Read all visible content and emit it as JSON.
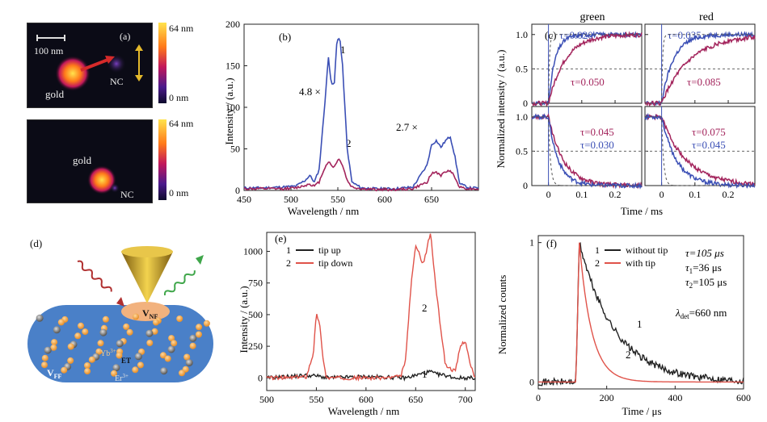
{
  "panels": {
    "a": {
      "tag": "(a)",
      "scale_bar": "100 nm",
      "top": {
        "label_gold": "gold",
        "label_nc": "NC"
      },
      "bottom": {
        "label_gold": "gold",
        "label_nc": "NC"
      },
      "colorbar_top": [
        "64 nm",
        "0 nm"
      ],
      "colorbar_bottom": [
        "64 nm",
        "0 nm"
      ],
      "colors": {
        "low": "#0d0a2c",
        "mid1": "#4b1a8c",
        "mid2": "#c2185b",
        "mid3": "#ff7a1a",
        "high": "#ffe34d"
      }
    },
    "b": {
      "tag": "(b)",
      "annotations": [
        "1",
        "2",
        "4.8 ×",
        "2.7 ×"
      ],
      "chart_data": {
        "type": "line",
        "xlabel": "Wavelength / nm",
        "ylabel": "Intensity / (a.u.)",
        "xlim": [
          450,
          700
        ],
        "ylim": [
          0,
          200
        ],
        "xticks": [
          450,
          500,
          550,
          600,
          650
        ],
        "yticks": [
          0,
          50,
          100,
          150,
          200
        ],
        "series": [
          {
            "name": "1",
            "color": "#3b4fb5",
            "x": [
              450,
              470,
              490,
              505,
              515,
              520,
              525,
              530,
              535,
              540,
              543,
              546,
              549,
              552,
              555,
              560,
              565,
              575,
              590,
              610,
              630,
              645,
              650,
              655,
              660,
              665,
              670,
              675,
              680,
              690,
              700
            ],
            "y": [
              3,
              3,
              4,
              5,
              12,
              18,
              10,
              25,
              90,
              160,
              130,
              125,
              180,
              185,
              150,
              50,
              10,
              3,
              2,
              2,
              4,
              30,
              55,
              60,
              52,
              60,
              65,
              40,
              8,
              3,
              3
            ]
          },
          {
            "name": "2",
            "color": "#a3245c",
            "x": [
              450,
              470,
              490,
              505,
              515,
              520,
              525,
              530,
              535,
              540,
              543,
              546,
              549,
              552,
              555,
              560,
              565,
              575,
              590,
              610,
              630,
              645,
              650,
              655,
              660,
              665,
              670,
              675,
              680,
              690,
              700
            ],
            "y": [
              2,
              2,
              2,
              3,
              6,
              8,
              5,
              10,
              25,
              35,
              30,
              28,
              35,
              38,
              30,
              12,
              4,
              2,
              1,
              1,
              2,
              10,
              20,
              22,
              18,
              22,
              25,
              15,
              4,
              2,
              2
            ]
          }
        ]
      }
    },
    "c": {
      "tag": "(c)",
      "col_titles": [
        "green",
        "red"
      ],
      "xlabel": "Time / ms",
      "ylabel": "Normalized intensity / (a.u.)",
      "yticks": [
        "0",
        "0.5",
        "1.0"
      ],
      "xticks": [
        "0",
        "0.1",
        "0.2"
      ],
      "taus": {
        "green_rise_blue": "τ=0.020",
        "green_rise_red": "τ=0.050",
        "red_rise_blue": "τ=0.035",
        "red_rise_red": "τ=0.085",
        "green_decay_red": "τ=0.045",
        "green_decay_blue": "τ=0.030",
        "red_decay_red": "τ=0.075",
        "red_decay_blue": "τ=0.045"
      },
      "chart_data": {
        "type": "line",
        "xlim": [
          -0.05,
          0.28
        ],
        "ylim": [
          0,
          1.15
        ],
        "subplots": [
          {
            "name": "green rise",
            "series": [
              {
                "name": "blue",
                "tau": 0.02,
                "color": "#3b4fb5"
              },
              {
                "name": "red",
                "tau": 0.05,
                "color": "#a3245c"
              },
              {
                "name": "instrument",
                "tau": 0.003,
                "color": "#555555"
              }
            ]
          },
          {
            "name": "red rise",
            "series": [
              {
                "name": "blue",
                "tau": 0.035,
                "color": "#3b4fb5"
              },
              {
                "name": "red",
                "tau": 0.085,
                "color": "#a3245c"
              },
              {
                "name": "instrument",
                "tau": 0.003,
                "color": "#555555"
              }
            ]
          },
          {
            "name": "green decay",
            "series": [
              {
                "name": "red",
                "tau": 0.045,
                "color": "#a3245c"
              },
              {
                "name": "blue",
                "tau": 0.03,
                "color": "#3b4fb5"
              },
              {
                "name": "instrument",
                "tau": 0.006,
                "color": "#555555"
              }
            ]
          },
          {
            "name": "red decay",
            "series": [
              {
                "name": "red",
                "tau": 0.075,
                "color": "#a3245c"
              },
              {
                "name": "blue",
                "tau": 0.045,
                "color": "#3b4fb5"
              },
              {
                "name": "instrument",
                "tau": 0.006,
                "color": "#555555"
              }
            ]
          }
        ]
      }
    },
    "d": {
      "tag": "(d)",
      "labels": {
        "vnf": "V",
        "vnf_sub": "NF",
        "vff": "V",
        "vff_sub": "FF",
        "yb": "Yb",
        "yb_sup": "3+",
        "er": "Er",
        "er_sup": "3+",
        "et": "ET"
      }
    },
    "e": {
      "tag": "(e)",
      "chart_data": {
        "type": "line",
        "xlabel": "Wavelength / nm",
        "ylabel": "Intensity / (a.u.)",
        "xlim": [
          500,
          710
        ],
        "ylim": [
          -100,
          1150
        ],
        "xticks": [
          500,
          550,
          600,
          650,
          700
        ],
        "yticks": [
          0,
          250,
          500,
          750,
          1000
        ],
        "legend": [
          {
            "num": "1",
            "name": "tip up",
            "color": "#222222"
          },
          {
            "num": "2",
            "name": "tip down",
            "color": "#e0534a"
          }
        ],
        "series": [
          {
            "name": "tip up",
            "color": "#222222",
            "x": [
              500,
              520,
              540,
              550,
              555,
              560,
              580,
              600,
              620,
              640,
              650,
              655,
              660,
              665,
              670,
              680,
              690,
              700,
              710
            ],
            "y": [
              0,
              10,
              20,
              15,
              10,
              0,
              5,
              10,
              5,
              0,
              20,
              30,
              40,
              50,
              30,
              20,
              0,
              0,
              0
            ]
          },
          {
            "name": "tip down",
            "color": "#e0534a",
            "x": [
              500,
              520,
              540,
              547,
              550,
              553,
              556,
              560,
              580,
              600,
              620,
              635,
              640,
              645,
              650,
              655,
              658,
              662,
              665,
              668,
              672,
              680,
              690,
              695,
              700,
              705,
              710
            ],
            "y": [
              0,
              0,
              10,
              200,
              500,
              450,
              200,
              0,
              0,
              0,
              0,
              10,
              150,
              700,
              1050,
              950,
              900,
              1050,
              1150,
              900,
              600,
              100,
              50,
              250,
              300,
              100,
              0
            ]
          }
        ]
      },
      "annotations": [
        "2",
        "1"
      ]
    },
    "f": {
      "tag": "(f)",
      "legend": [
        {
          "num": "1",
          "name": "without tip",
          "color": "#222222"
        },
        {
          "num": "2",
          "name": "with tip",
          "color": "#e0534a"
        }
      ],
      "texts": [
        "τ=105 μs",
        "τ",
        "1",
        "=36 μs",
        "τ",
        "2",
        "=105 μs",
        "λ",
        "det",
        "=660 nm"
      ],
      "annotations": [
        "1",
        "2"
      ],
      "chart_data": {
        "type": "line",
        "xlabel": "Time / μs",
        "ylabel": "Normalized counts",
        "xlim": [
          0,
          600
        ],
        "ylim": [
          -0.05,
          1.05
        ],
        "xticks": [
          0,
          200,
          400,
          600
        ],
        "yticks": [
          0,
          1
        ],
        "series": [
          {
            "name": "without tip",
            "color": "#222222",
            "t0": 110,
            "rise": 120,
            "tau": 105
          },
          {
            "name": "with tip",
            "color": "#e0534a",
            "t0": 110,
            "rise": 120,
            "tau": 36
          }
        ]
      }
    }
  }
}
